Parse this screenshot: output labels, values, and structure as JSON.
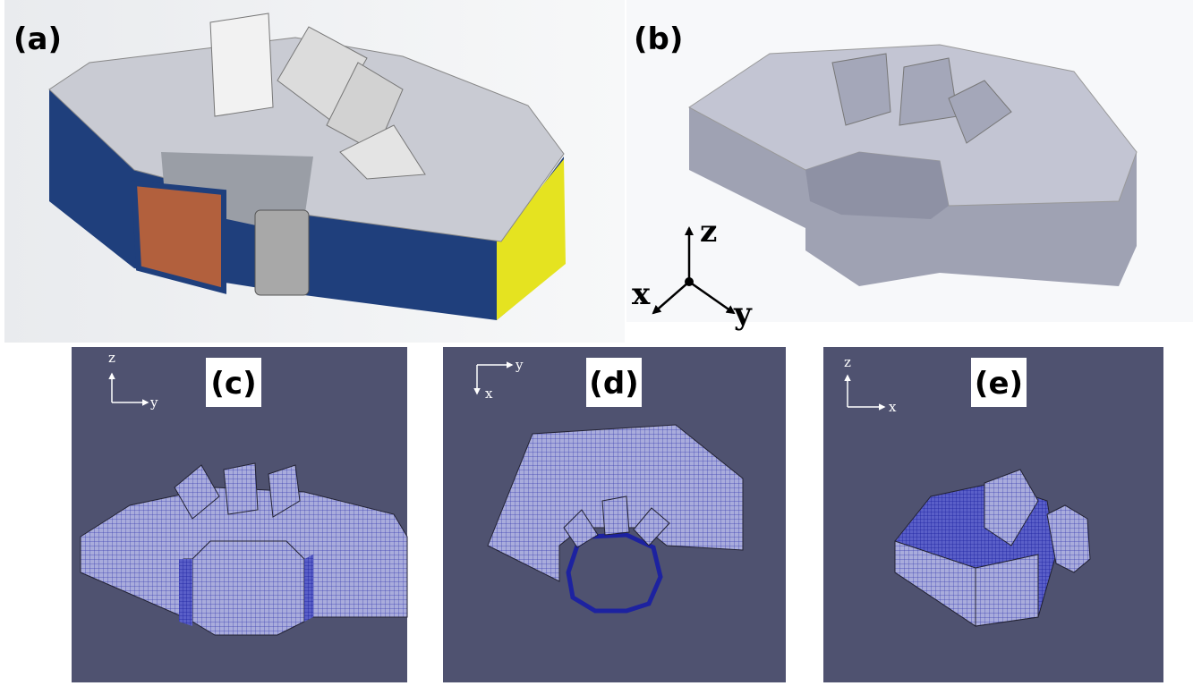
{
  "panels": [
    {
      "label": "(a)"
    },
    {
      "label": "(b)",
      "axes": [
        "z",
        "x",
        "y"
      ]
    },
    {
      "label": "(c)",
      "axes": [
        "z",
        "y"
      ]
    },
    {
      "label": "(d)",
      "axes": [
        "y",
        "x"
      ]
    },
    {
      "label": "(e)",
      "axes": [
        "z",
        "x"
      ]
    }
  ]
}
